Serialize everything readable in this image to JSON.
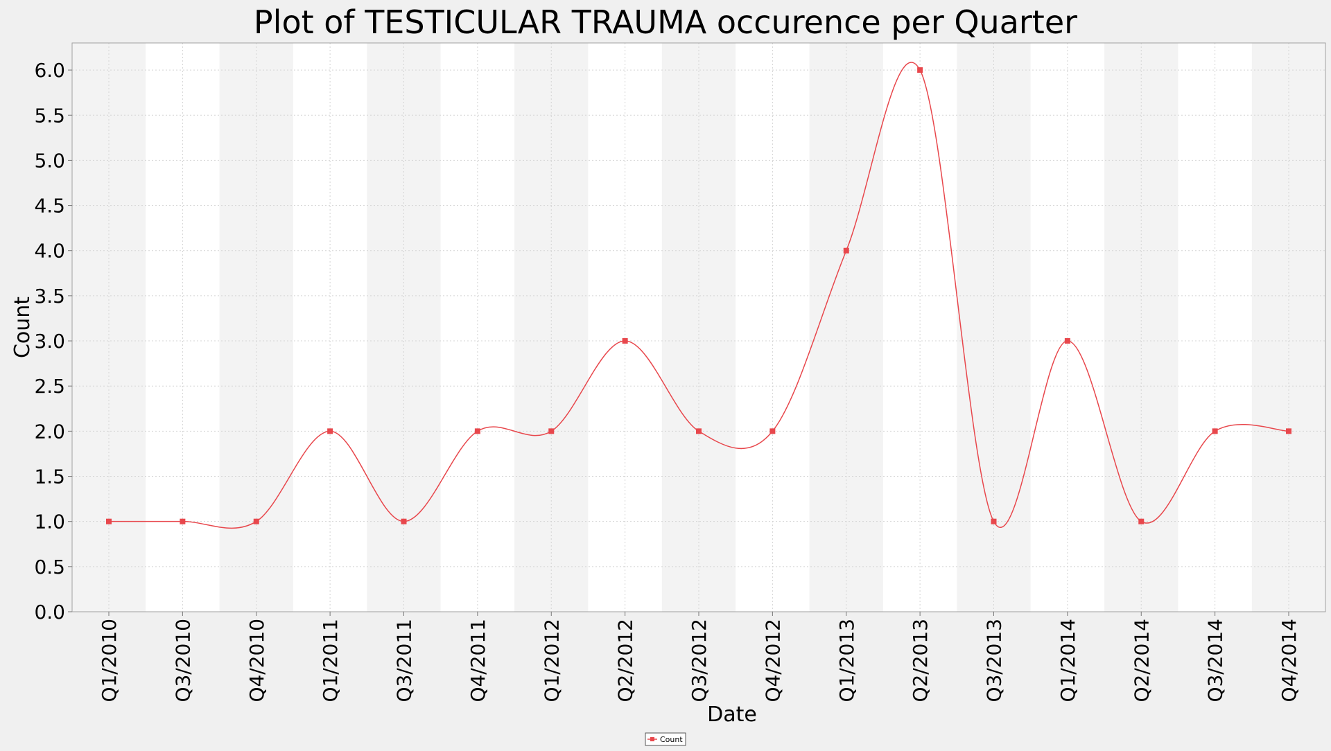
{
  "chart_data": {
    "type": "line",
    "title": "Plot of TESTICULAR TRAUMA occurence per Quarter",
    "xlabel": "Date",
    "ylabel": "Count",
    "ylim": [
      0,
      6.3
    ],
    "yticks": [
      "0.0",
      "0.5",
      "1.0",
      "1.5",
      "2.0",
      "2.5",
      "3.0",
      "3.5",
      "4.0",
      "4.5",
      "5.0",
      "5.5",
      "6.0"
    ],
    "categories": [
      "Q1/2010",
      "Q3/2010",
      "Q4/2010",
      "Q1/2011",
      "Q3/2011",
      "Q4/2011",
      "Q1/2012",
      "Q2/2012",
      "Q3/2012",
      "Q4/2012",
      "Q1/2013",
      "Q2/2013",
      "Q3/2013",
      "Q1/2014",
      "Q2/2014",
      "Q3/2014",
      "Q4/2014"
    ],
    "series": [
      {
        "name": "Count",
        "values": [
          1,
          1,
          1,
          2,
          1,
          2,
          2,
          3,
          2,
          2,
          4,
          6,
          1,
          3,
          1,
          2,
          2
        ],
        "color": "#e8474c"
      }
    ],
    "legend": {
      "placement": "bottom-center"
    },
    "grid": true,
    "bands": {
      "light": "#f3f3f3",
      "dark": "#ffffff"
    },
    "plot_background": "#ffffff",
    "curve": "smooth"
  }
}
